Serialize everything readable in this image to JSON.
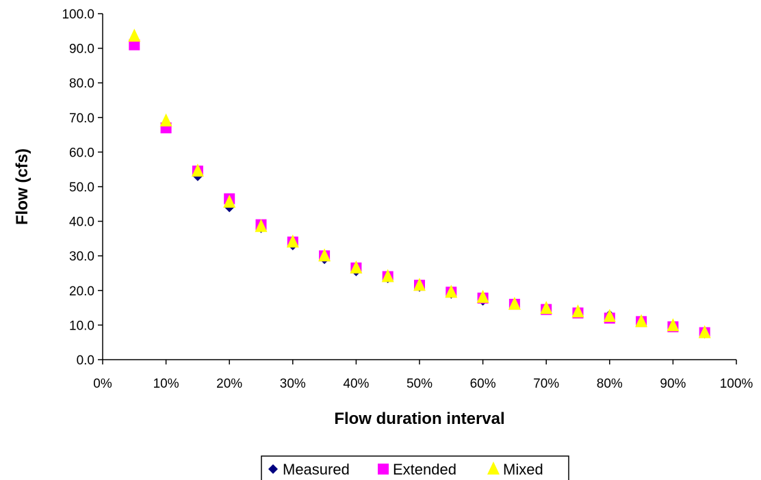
{
  "chart_data": {
    "type": "scatter",
    "title": "",
    "xlabel": "Flow duration interval",
    "ylabel": "Flow (cfs)",
    "xlim": [
      0,
      100
    ],
    "ylim": [
      0,
      100
    ],
    "x_ticks": [
      "0%",
      "10%",
      "20%",
      "30%",
      "40%",
      "50%",
      "60%",
      "70%",
      "80%",
      "90%",
      "100%"
    ],
    "y_ticks": [
      "0.0",
      "10.0",
      "20.0",
      "30.0",
      "40.0",
      "50.0",
      "60.0",
      "70.0",
      "80.0",
      "90.0",
      "100.0"
    ],
    "x": [
      5,
      10,
      15,
      20,
      25,
      30,
      35,
      40,
      45,
      50,
      55,
      60,
      65,
      70,
      75,
      80,
      85,
      90,
      95
    ],
    "series": [
      {
        "name": "Measured",
        "marker": "diamond",
        "color": "#000080",
        "values": [
          91.5,
          67.5,
          53.0,
          44.0,
          38.0,
          33.0,
          29.0,
          25.5,
          23.5,
          21.0,
          19.0,
          17.0,
          16.0,
          14.5,
          13.5,
          13.0,
          11.0,
          9.5,
          7.5
        ]
      },
      {
        "name": "Extended",
        "marker": "square",
        "color": "#FF00FF",
        "values": [
          91.0,
          67.0,
          54.5,
          46.5,
          39.0,
          34.0,
          30.0,
          26.5,
          24.0,
          21.5,
          19.5,
          17.8,
          16.0,
          14.5,
          13.5,
          12.0,
          11.0,
          9.5,
          7.8
        ]
      },
      {
        "name": "Mixed",
        "marker": "triangle",
        "color": "#FFFF00",
        "values": [
          93.5,
          69.0,
          54.5,
          45.5,
          38.5,
          34.0,
          30.0,
          26.5,
          24.0,
          21.5,
          19.5,
          18.0,
          16.0,
          14.8,
          13.8,
          12.5,
          11.0,
          9.8,
          7.8
        ]
      }
    ],
    "grid": false,
    "legend_position": "bottom-center"
  }
}
